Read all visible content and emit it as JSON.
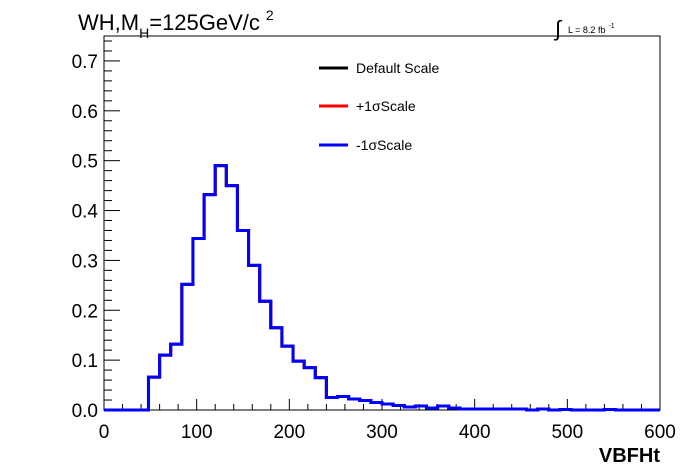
{
  "chart_data": {
    "type": "line",
    "title_main": "WH,M",
    "title_sub": "H",
    "title_rest": "=125GeV/c",
    "title_sup": "2",
    "lumi_integral": "∫",
    "lumi_text": "L = 8.2 fb",
    "lumi_sup": "-1",
    "xlabel": "VBFHt",
    "ylabel": "",
    "xlim": [
      0,
      600
    ],
    "ylim": [
      0,
      0.75
    ],
    "x_ticks": [
      0,
      100,
      200,
      300,
      400,
      500,
      600
    ],
    "y_ticks": [
      0,
      0.1,
      0.2,
      0.3,
      0.4,
      0.5,
      0.6,
      0.7
    ],
    "x_tick_labels": [
      "0",
      "100",
      "200",
      "300",
      "400",
      "500",
      "600"
    ],
    "y_tick_labels": [
      "0.0",
      "0.1",
      "0.2",
      "0.3",
      "0.4",
      "0.5",
      "0.6",
      "0.7"
    ],
    "bin_width": 12,
    "bin_edges_start": 0,
    "legend_position": "top-center",
    "series": [
      {
        "name": "Default Scale",
        "color": "#000000",
        "values": [
          0,
          0,
          0,
          0,
          0.066,
          0.11,
          0.132,
          0.252,
          0.344,
          0.432,
          0.49,
          0.45,
          0.36,
          0.29,
          0.218,
          0.165,
          0.128,
          0.098,
          0.085,
          0.065,
          0.025,
          0.027,
          0.022,
          0.019,
          0.015,
          0.012,
          0.009,
          0.006,
          0.008,
          0.004,
          0.008,
          0.004,
          0.002,
          0.002,
          0.002,
          0.002,
          0.002,
          0.002,
          0,
          0.002,
          0,
          0.001,
          0,
          0,
          0,
          0.001,
          0,
          0,
          0,
          0,
          0
        ]
      },
      {
        "name": "+1σScale",
        "color": "#ff0000",
        "values": [
          0,
          0,
          0,
          0,
          0.066,
          0.11,
          0.132,
          0.252,
          0.344,
          0.432,
          0.49,
          0.45,
          0.36,
          0.29,
          0.218,
          0.165,
          0.128,
          0.098,
          0.085,
          0.065,
          0.025,
          0.027,
          0.022,
          0.019,
          0.015,
          0.012,
          0.009,
          0.006,
          0.008,
          0.004,
          0.008,
          0.004,
          0.002,
          0.002,
          0.002,
          0.002,
          0.002,
          0.002,
          0,
          0.002,
          0,
          0.001,
          0,
          0,
          0,
          0.001,
          0,
          0,
          0,
          0,
          0
        ]
      },
      {
        "name": "-1σScale",
        "color": "#0000ff",
        "values": [
          0,
          0,
          0,
          0,
          0.066,
          0.11,
          0.132,
          0.252,
          0.344,
          0.432,
          0.49,
          0.45,
          0.36,
          0.29,
          0.218,
          0.165,
          0.128,
          0.098,
          0.085,
          0.065,
          0.025,
          0.027,
          0.022,
          0.019,
          0.015,
          0.012,
          0.009,
          0.006,
          0.008,
          0.004,
          0.008,
          0.004,
          0.002,
          0.002,
          0.002,
          0.002,
          0.002,
          0.002,
          0,
          0.002,
          0,
          0.001,
          0,
          0,
          0,
          0.001,
          0,
          0,
          0,
          0,
          0
        ]
      }
    ]
  }
}
